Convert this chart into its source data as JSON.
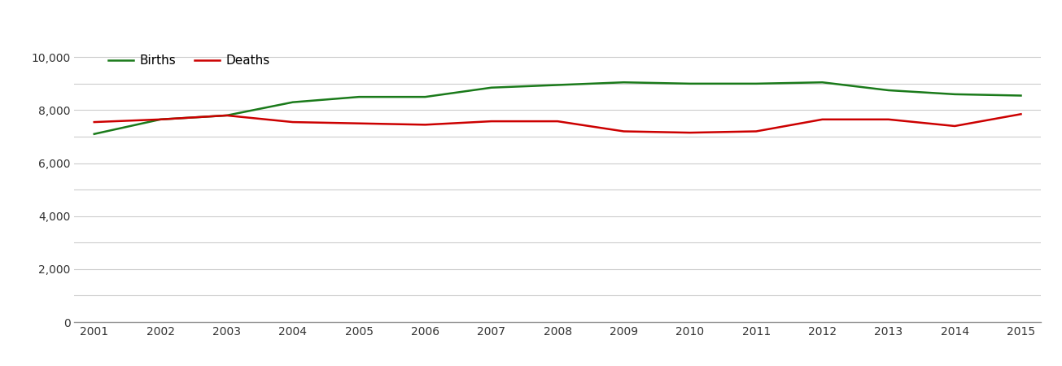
{
  "years": [
    2001,
    2002,
    2003,
    2004,
    2005,
    2006,
    2007,
    2008,
    2009,
    2010,
    2011,
    2012,
    2013,
    2014,
    2015
  ],
  "births": [
    7100,
    7650,
    7800,
    8300,
    8500,
    8500,
    8850,
    8950,
    9050,
    9000,
    9000,
    9050,
    8750,
    8600,
    8550
  ],
  "deaths": [
    7550,
    7650,
    7800,
    7550,
    7500,
    7450,
    7580,
    7580,
    7200,
    7150,
    7200,
    7650,
    7650,
    7400,
    7850
  ],
  "births_color": "#1a7a1a",
  "deaths_color": "#cc0000",
  "background_color": "#ffffff",
  "grid_color": "#cccccc",
  "ylim": [
    0,
    10500
  ],
  "yticks": [
    0,
    2000,
    4000,
    6000,
    8000,
    10000
  ],
  "extra_gridlines": [
    1000,
    3000,
    5000,
    7000,
    9000
  ],
  "line_width": 1.8,
  "legend_births": "Births",
  "legend_deaths": "Deaths"
}
